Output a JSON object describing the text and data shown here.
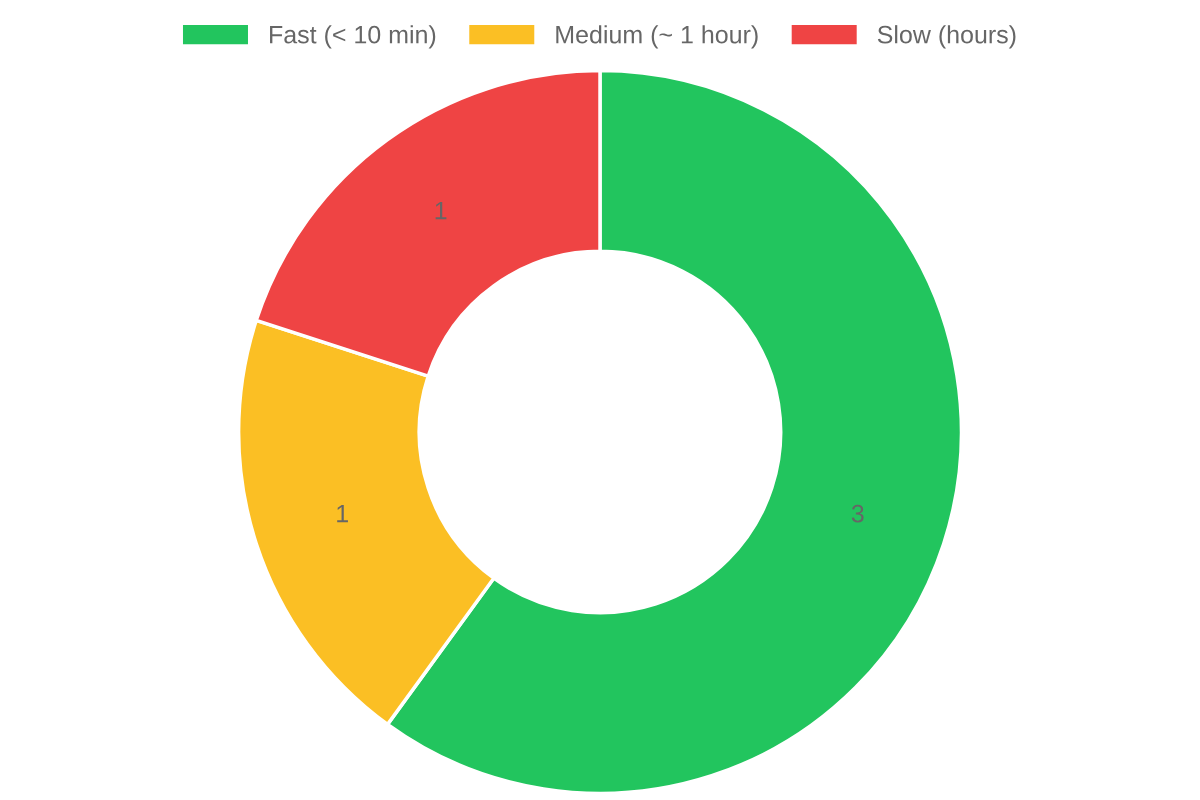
{
  "chart_data": {
    "type": "donut",
    "categories": [
      "Fast (< 10 min)",
      "Medium (~ 1 hour)",
      "Slow (hours)"
    ],
    "values": [
      3,
      1,
      1
    ],
    "colors": [
      "#22c55e",
      "#fbbf24",
      "#ef4444"
    ],
    "data_labels": true,
    "legend": "top"
  }
}
